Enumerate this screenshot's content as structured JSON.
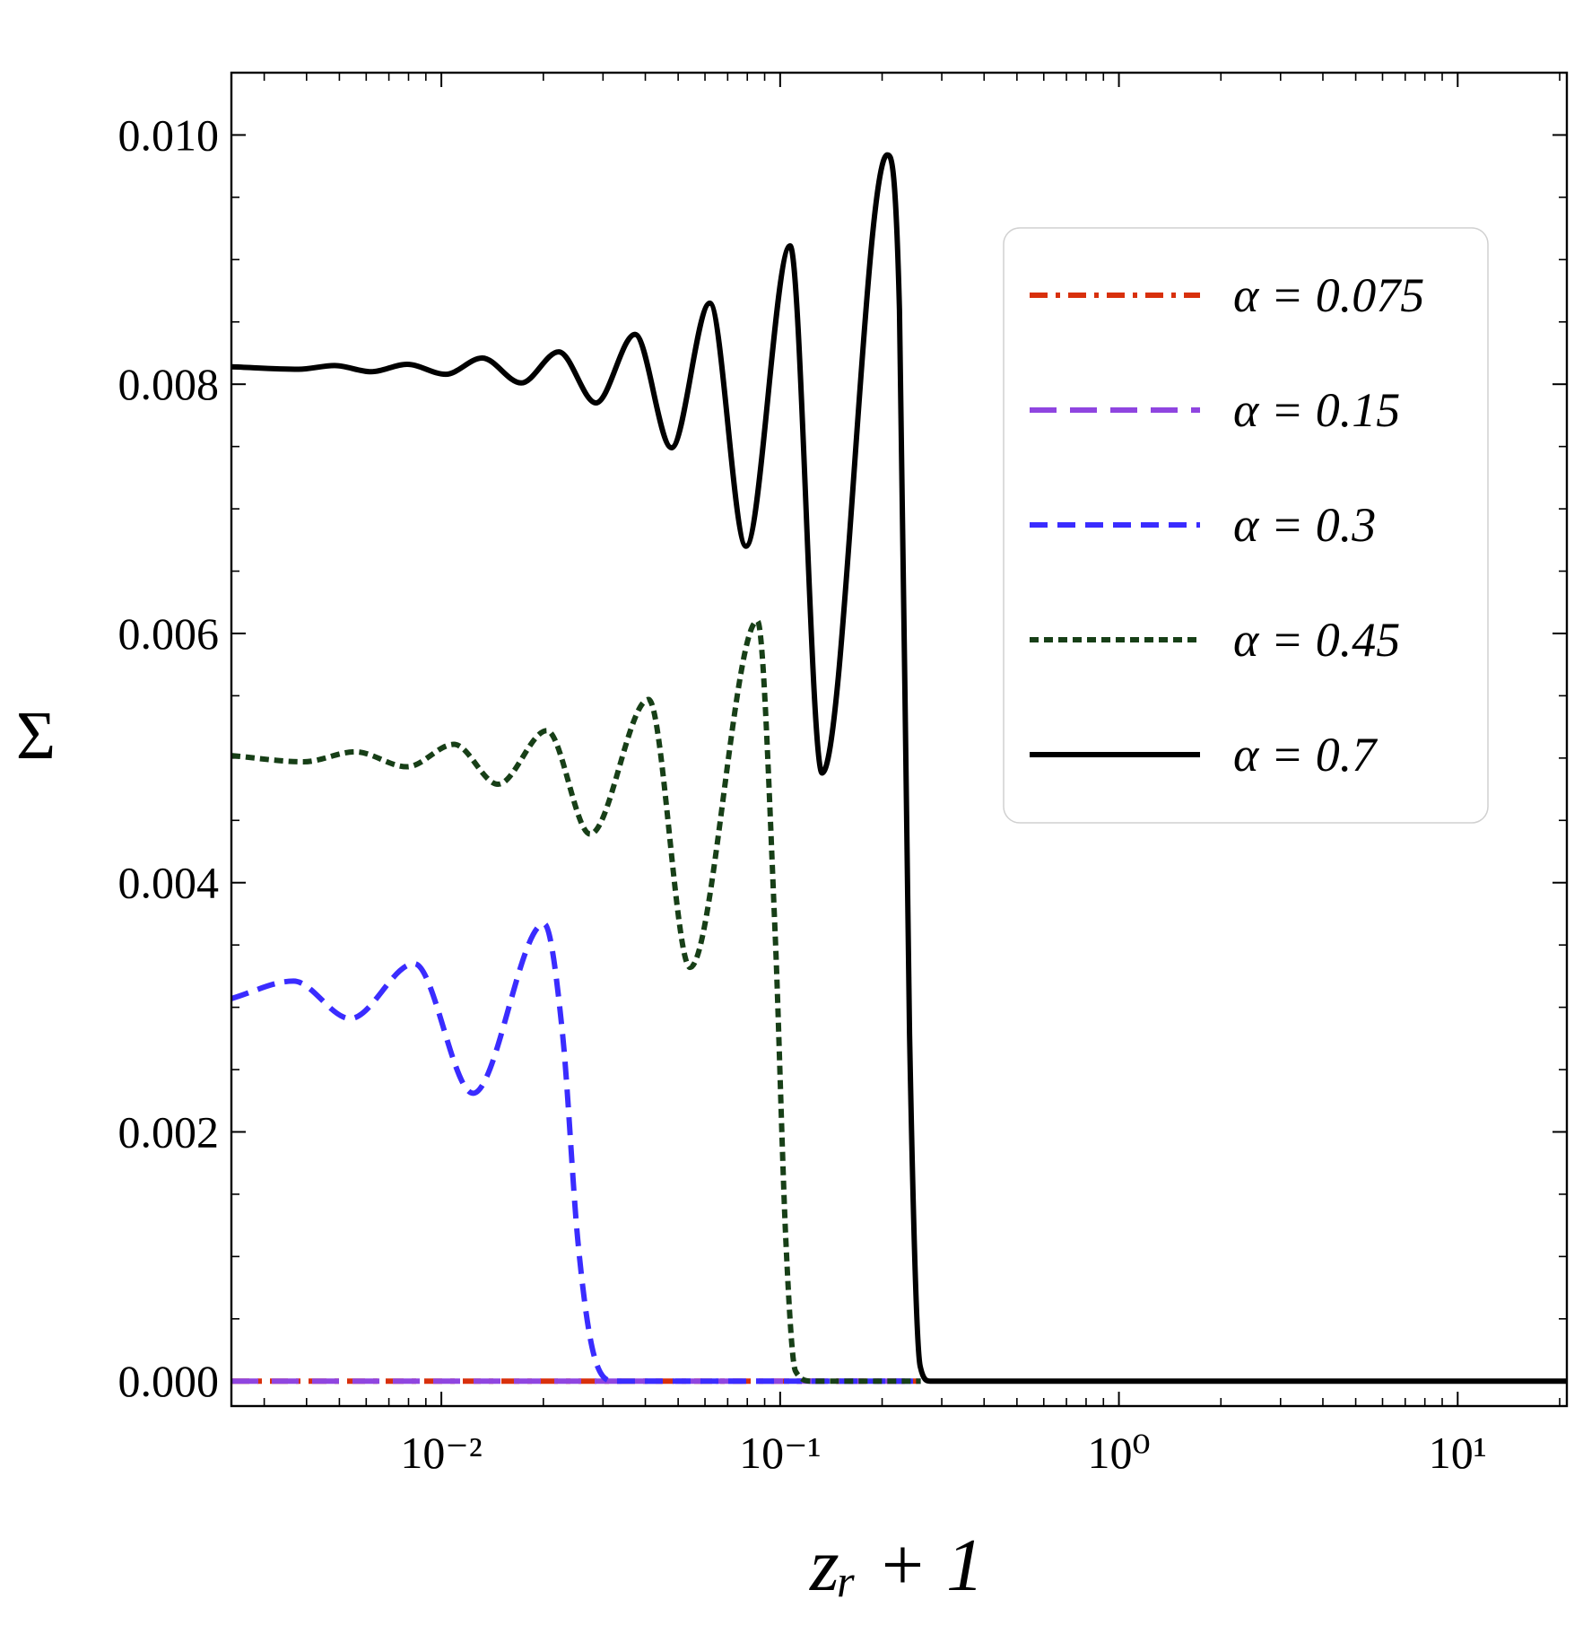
{
  "chart_data": {
    "type": "line",
    "xlabel": "zᵣ + 1",
    "ylabel": "Σ",
    "xscale": "log",
    "xlim": [
      0.0024,
      21
    ],
    "ylim": [
      -0.0002,
      0.0105
    ],
    "xticks": [
      {
        "value": 0.01,
        "label": "10⁻²"
      },
      {
        "value": 0.1,
        "label": "10⁻¹"
      },
      {
        "value": 1,
        "label": "10⁰"
      },
      {
        "value": 10,
        "label": "10¹"
      }
    ],
    "xminorticks": [
      0.003,
      0.004,
      0.005,
      0.006,
      0.007,
      0.008,
      0.009,
      0.02,
      0.03,
      0.04,
      0.05,
      0.06,
      0.07,
      0.08,
      0.09,
      0.2,
      0.3,
      0.4,
      0.5,
      0.6,
      0.7,
      0.8,
      0.9,
      2,
      3,
      4,
      5,
      6,
      7,
      8,
      9,
      20
    ],
    "yticks": [
      {
        "value": 0,
        "label": "0.000"
      },
      {
        "value": 0.002,
        "label": "0.002"
      },
      {
        "value": 0.004,
        "label": "0.004"
      },
      {
        "value": 0.006,
        "label": "0.006"
      },
      {
        "value": 0.008,
        "label": "0.008"
      },
      {
        "value": 0.01,
        "label": "0.010"
      }
    ],
    "yminorticks": [
      0.0005,
      0.001,
      0.0015,
      0.0025,
      0.003,
      0.0035,
      0.0045,
      0.005,
      0.0055,
      0.0065,
      0.007,
      0.0075,
      0.0085,
      0.009,
      0.0095
    ],
    "legend": "upper right",
    "series": [
      {
        "name": "α = 0.075",
        "color": "#d8300c",
        "linestyle": "dashdot",
        "x": [
          0.0024,
          0.26
        ],
        "values": [
          0,
          0
        ]
      },
      {
        "name": "α = 0.15",
        "color": "#8f45e0",
        "linestyle": "longdash",
        "x": [
          0.0024,
          0.26
        ],
        "values": [
          0,
          0
        ]
      },
      {
        "name": "α = 0.3",
        "color": "#3a2cff",
        "linestyle": "dashed",
        "x": [
          0.0024,
          0.00366,
          0.00538,
          0.00832,
          0.0124,
          0.0201,
          0.0228,
          0.0253,
          0.0282,
          0.0325,
          0.26
        ],
        "values": [
          0.00307,
          0.00321,
          0.00291,
          0.00335,
          0.00231,
          0.00367,
          0.00278,
          0.00112,
          0.00021,
          0,
          0
        ]
      },
      {
        "name": "α = 0.45",
        "color": "#173f17",
        "linestyle": "dotted",
        "x": [
          0.0024,
          0.00392,
          0.00557,
          0.00792,
          0.0109,
          0.0147,
          0.0205,
          0.0275,
          0.0409,
          0.0542,
          0.0857,
          0.0966,
          0.104,
          0.111,
          0.124,
          0.26
        ],
        "values": [
          0.00502,
          0.00497,
          0.00505,
          0.00493,
          0.00511,
          0.00479,
          0.00522,
          0.00439,
          0.00547,
          0.00332,
          0.0061,
          0.00361,
          0.00112,
          8e-05,
          0,
          0
        ]
      },
      {
        "name": "α = 0.7",
        "color": "#000000",
        "linestyle": "solid",
        "x": [
          0.0024,
          0.00379,
          0.00484,
          0.0062,
          0.00792,
          0.0103,
          0.0132,
          0.0172,
          0.0222,
          0.0286,
          0.0373,
          0.0478,
          0.062,
          0.0793,
          0.107,
          0.133,
          0.207,
          0.225,
          0.241,
          0.259,
          0.277,
          21
        ],
        "values": [
          0.00814,
          0.00812,
          0.00815,
          0.0081,
          0.00816,
          0.00808,
          0.00821,
          0.00801,
          0.00826,
          0.00785,
          0.0084,
          0.00749,
          0.00865,
          0.0067,
          0.00911,
          0.00488,
          0.00984,
          0.0086,
          0.00278,
          0.00012,
          0,
          0
        ]
      }
    ]
  }
}
